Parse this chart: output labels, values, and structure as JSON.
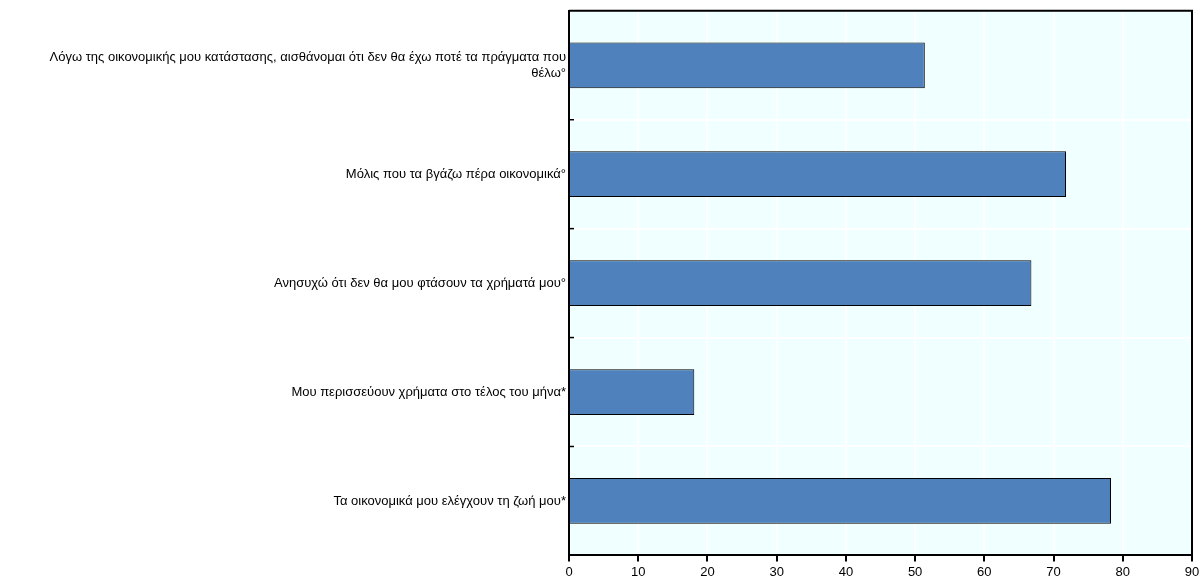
{
  "chart_data": {
    "type": "bar",
    "orientation": "horizontal",
    "categories": [
      "Λόγω της οικονομικής μου κατάστασης, αισθάνομαι ότι δεν θα έχω ποτέ τα πράγματα που θέλω°",
      "Μόλις που τα βγάζω πέρα οικονομικά°",
      "Ανησυχώ ότι δεν θα μου φτάσουν τα χρήματά μου°",
      "Μου περισσεύουν χρήματα στο τέλος του μήνα*",
      "Τα οικονομικά μου ελέγχουν τη ζωή μου*"
    ],
    "values": [
      51.4,
      71.8,
      66.8,
      18.1,
      78.3
    ],
    "color": "#4f81bd",
    "xlim": [
      0,
      90
    ],
    "xticks": [
      0,
      10,
      20,
      30,
      40,
      50,
      60,
      70,
      80,
      90
    ],
    "grid": true
  }
}
